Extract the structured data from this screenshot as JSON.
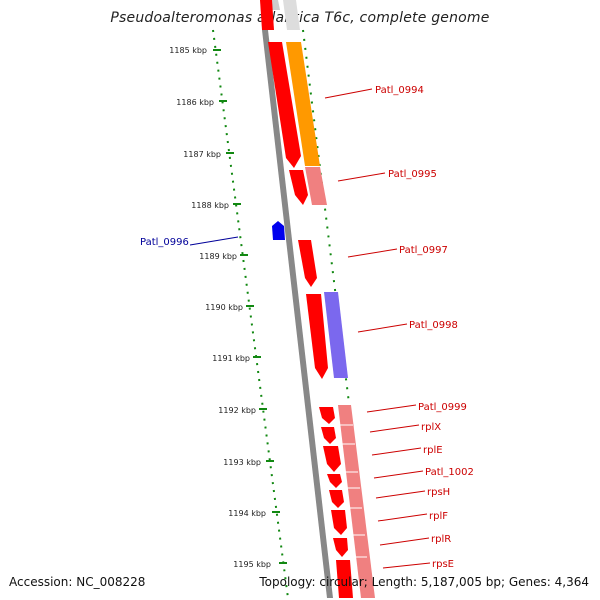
{
  "map": {
    "title": "Pseudoalteromonas atlantica T6c, complete genome",
    "accession": "Accession: NC_008228",
    "stats": "Topology: circular; Length: 5,187,005 bp; Genes: 4,364"
  },
  "colors": {
    "gene_red": "#ff0000",
    "gene_pink": "#f08080",
    "orange": "#ff9900",
    "purple": "#7b68ee",
    "blue": "#0000ee",
    "green": "#118811",
    "backbone": "#888888",
    "label_red": "#cc0000",
    "label_blue": "#000099"
  },
  "kbp_ticks": [
    "1185 kbp",
    "1186 kbp",
    "1187 kbp",
    "1188 kbp",
    "1189 kbp",
    "1190 kbp",
    "1191 kbp",
    "1192 kbp",
    "1193 kbp",
    "1194 kbp",
    "1195 kbp"
  ],
  "gene_labels": [
    {
      "name": "Patl_0994",
      "color": "label_red"
    },
    {
      "name": "Patl_0995",
      "color": "label_red"
    },
    {
      "name": "Patl_0997",
      "color": "label_red"
    },
    {
      "name": "Patl_0998",
      "color": "label_red"
    },
    {
      "name": "Patl_0999",
      "color": "label_red"
    },
    {
      "name": "rplX",
      "color": "label_red"
    },
    {
      "name": "rplE",
      "color": "label_red"
    },
    {
      "name": "Patl_1002",
      "color": "label_red"
    },
    {
      "name": "rpsH",
      "color": "label_red"
    },
    {
      "name": "rplF",
      "color": "label_red"
    },
    {
      "name": "rplR",
      "color": "label_red"
    },
    {
      "name": "rpsE",
      "color": "label_red"
    },
    {
      "name": "Patl_0996",
      "color": "label_blue"
    }
  ]
}
